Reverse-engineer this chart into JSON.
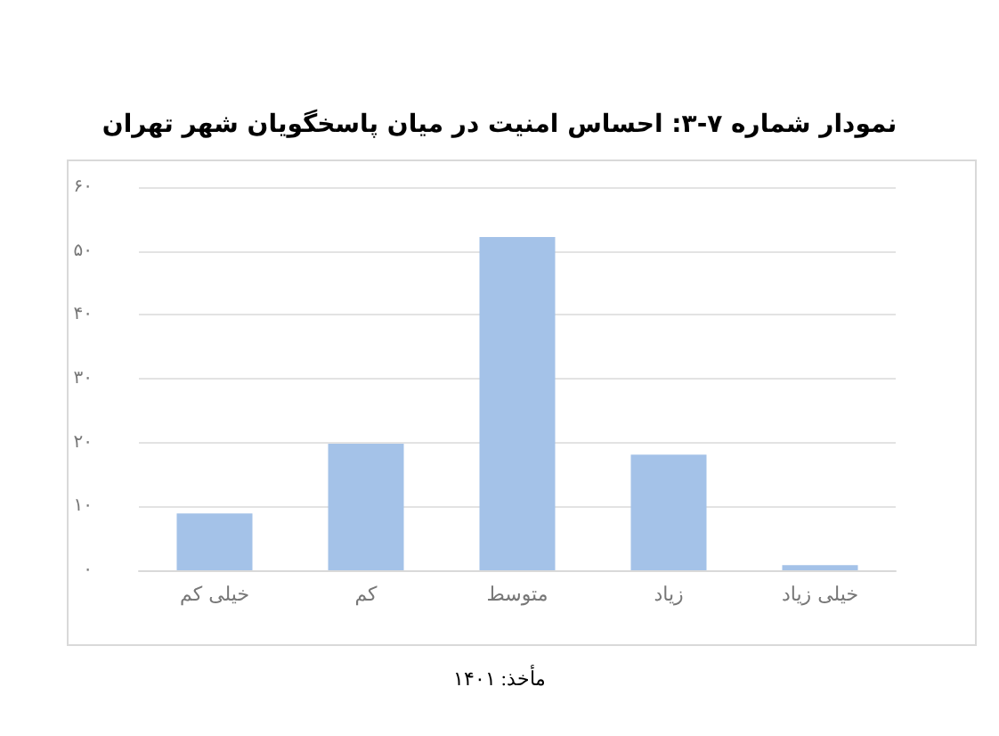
{
  "chart_data": {
    "type": "bar",
    "title": "نمودار شماره ۷-۳: احساس امنیت در میان پاسخگویان شهر تهران",
    "categories": [
      "خیلی کم",
      "کم",
      "متوسط",
      "زیاد",
      "خیلی زیاد"
    ],
    "values": [
      8.9,
      19.8,
      52.2,
      18.1,
      0.8
    ],
    "color": "#a4c2e8",
    "ylim": [
      0,
      60
    ],
    "yticks": [
      {
        "value": 0,
        "label": "۰"
      },
      {
        "value": 10,
        "label": "۱۰"
      },
      {
        "value": 20,
        "label": "۲۰"
      },
      {
        "value": 30,
        "label": "۳۰"
      },
      {
        "value": 40,
        "label": "۴۰"
      },
      {
        "value": 50,
        "label": "۵۰"
      },
      {
        "value": 60,
        "label": "۶۰"
      }
    ],
    "grid": "y",
    "annotations": [
      "مأخذ: ۱۴۰۱"
    ]
  }
}
